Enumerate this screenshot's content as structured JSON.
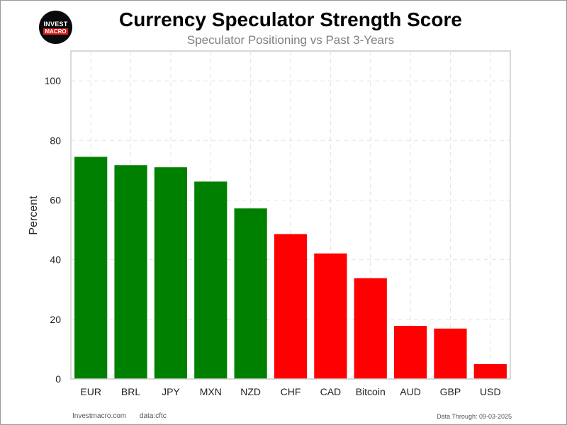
{
  "header": {
    "logo_line1": "INVEST",
    "logo_line2": "MACRO",
    "title": "Currency Speculator Strength Score",
    "subtitle": "Speculator Positioning vs Past 3-Years"
  },
  "footer": {
    "site": "Investmacro.com",
    "source": "data:cftc",
    "date": "Data Through: 09-03-2025"
  },
  "colors": {
    "positive": "#008000",
    "negative": "#ff0000",
    "grid": "#e3e3e3",
    "axis_box": "#cccccc"
  },
  "chart_data": {
    "type": "bar",
    "title": "Currency Speculator Strength Score",
    "subtitle": "Speculator Positioning vs Past 3-Years",
    "xlabel": "",
    "ylabel": "Percent",
    "ylim": [
      0,
      110
    ],
    "yticks": [
      0,
      20,
      40,
      60,
      80,
      100
    ],
    "grid": true,
    "categories": [
      "EUR",
      "BRL",
      "JPY",
      "MXN",
      "NZD",
      "CHF",
      "CAD",
      "Bitcoin",
      "AUD",
      "GBP",
      "USD"
    ],
    "values": [
      74.5,
      71.7,
      71.0,
      66.2,
      57.2,
      48.6,
      42.1,
      33.8,
      17.8,
      16.9,
      5.0
    ],
    "bar_colors": [
      "#008000",
      "#008000",
      "#008000",
      "#008000",
      "#008000",
      "#ff0000",
      "#ff0000",
      "#ff0000",
      "#ff0000",
      "#ff0000",
      "#ff0000"
    ]
  }
}
